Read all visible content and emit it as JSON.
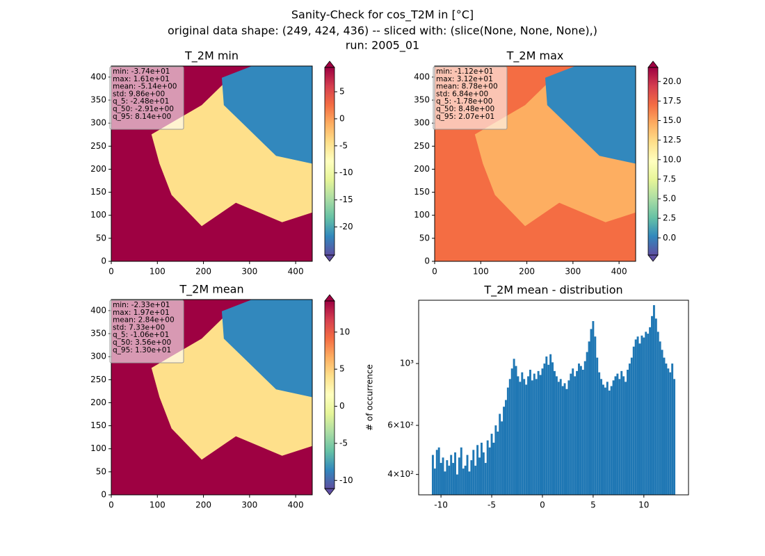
{
  "title": [
    "Sanity-Check for cos_T2M in [°C]",
    "original data shape: (249, 424, 436) -- sliced with: (slice(None, None, None),)",
    "run: 2005_01"
  ],
  "cmap_colors": [
    "#5e4fa2",
    "#3288bd",
    "#66c2a5",
    "#abdda4",
    "#e6f598",
    "#ffffbf",
    "#fee08b",
    "#fdae61",
    "#f46d43",
    "#d53e4f",
    "#9e0142"
  ],
  "chart_data": [
    {
      "type": "heatmap",
      "title": "T_2M min",
      "xlim": [
        0,
        436
      ],
      "ylim": [
        0,
        424
      ],
      "xticks": [
        0,
        100,
        200,
        300,
        400
      ],
      "yticks": [
        0,
        50,
        100,
        150,
        200,
        250,
        300,
        350,
        400
      ],
      "stats": [
        "min: -3.74e+01",
        "max: 1.61e+01",
        "mean: -5.14e+00",
        "std: 9.86e+00",
        "q_5: -2.48e+01",
        "q_50: -2.91e+00",
        "q_95: 8.14e+00"
      ],
      "clim": [
        -25.2,
        9.5
      ],
      "cticks": [
        5,
        0,
        -5,
        -10,
        -15,
        -20
      ],
      "extend": "both"
    },
    {
      "type": "heatmap",
      "title": "T_2M max",
      "xlim": [
        0,
        436
      ],
      "ylim": [
        0,
        424
      ],
      "xticks": [
        0,
        100,
        200,
        300,
        400
      ],
      "yticks": [
        0,
        50,
        100,
        150,
        200,
        250,
        300,
        350,
        400
      ],
      "stats": [
        "min: -1.12e+01",
        "max: 3.12e+01",
        "mean: 8.78e+00",
        "std: 6.84e+00",
        "q_5: -1.78e+00",
        "q_50: 8.48e+00",
        "q_95: 2.07e+01"
      ],
      "clim": [
        -2.2,
        21.8
      ],
      "cticks": [
        {
          "value": 20,
          "label": "20.0"
        },
        17.5,
        {
          "value": 15,
          "label": "15.0"
        },
        12.5,
        {
          "value": 10,
          "label": "10.0"
        },
        7.5,
        {
          "value": 5,
          "label": "5.0"
        },
        2.5,
        {
          "value": 0,
          "label": "0.0"
        }
      ],
      "extend": "both"
    },
    {
      "type": "heatmap",
      "title": "T_2M mean",
      "xlim": [
        0,
        436
      ],
      "ylim": [
        0,
        424
      ],
      "xticks": [
        0,
        100,
        200,
        300,
        400
      ],
      "yticks": [
        0,
        50,
        100,
        150,
        200,
        250,
        300,
        350,
        400
      ],
      "stats": [
        "min: -2.33e+01",
        "max: 1.97e+01",
        "mean: 2.84e+00",
        "std: 7.33e+00",
        "q_5: -1.06e+01",
        "q_50: 3.56e+00",
        "q_95: 1.30e+01"
      ],
      "clim": [
        -11.1,
        14.2
      ],
      "cticks": [
        10,
        5,
        0,
        -5,
        -10
      ],
      "extend": "both"
    },
    {
      "type": "histogram",
      "title": "T_2M mean - distribution",
      "y_label": "# of occurrence",
      "color": "#1f77b4",
      "xlim": [
        -12.2,
        14.4
      ],
      "xticks": [
        -10,
        -5,
        0,
        5,
        10
      ],
      "ylim": [
        338,
        1687
      ],
      "yscale": "log",
      "yticks": [
        {
          "value": 400,
          "label": "4×10²"
        },
        {
          "value": 600,
          "label": "6×10²"
        },
        {
          "value": 1000,
          "label": "10³"
        }
      ],
      "bins": [
        -10.9,
        -10.7,
        -10.5,
        -10.3,
        -10.1,
        -9.9,
        -9.7,
        -9.5,
        -9.3,
        -9.1,
        -8.9,
        -8.7,
        -8.5,
        -8.3,
        -8.1,
        -7.9,
        -7.7,
        -7.5,
        -7.3,
        -7.1,
        -6.9,
        -6.7,
        -6.5,
        -6.3,
        -6.1,
        -5.9,
        -5.7,
        -5.5,
        -5.3,
        -5.1,
        -4.9,
        -4.7,
        -4.5,
        -4.3,
        -4.1,
        -3.9,
        -3.7,
        -3.5,
        -3.3,
        -3.1,
        -2.9,
        -2.7,
        -2.5,
        -2.3,
        -2.1,
        -1.9,
        -1.7,
        -1.5,
        -1.3,
        -1.1,
        -0.9,
        -0.7,
        -0.5,
        -0.3,
        -0.1,
        0.1,
        0.3,
        0.5,
        0.7,
        0.9,
        1.1,
        1.3,
        1.5,
        1.7,
        1.9,
        2.1,
        2.3,
        2.5,
        2.7,
        2.9,
        3.1,
        3.3,
        3.5,
        3.7,
        3.9,
        4.1,
        4.3,
        4.5,
        4.7,
        4.9,
        5.1,
        5.3,
        5.5,
        5.7,
        5.9,
        6.1,
        6.3,
        6.5,
        6.7,
        6.9,
        7.1,
        7.3,
        7.5,
        7.7,
        7.9,
        8.1,
        8.3,
        8.5,
        8.7,
        8.9,
        9.1,
        9.3,
        9.5,
        9.7,
        9.9,
        10.1,
        10.3,
        10.5,
        10.7,
        10.9,
        11.1,
        11.3,
        11.5,
        11.7,
        11.9,
        12.1,
        12.3,
        12.5,
        12.7,
        12.9,
        13.1
      ],
      "values": [
        470,
        420,
        490,
        500,
        440,
        460,
        410,
        450,
        430,
        470,
        440,
        480,
        400,
        460,
        500,
        420,
        430,
        470,
        410,
        450,
        490,
        430,
        510,
        460,
        520,
        480,
        440,
        530,
        500,
        560,
        520,
        600,
        570,
        660,
        620,
        700,
        740,
        820,
        880,
        960,
        1040,
        980,
        900,
        860,
        930,
        880,
        840,
        900,
        950,
        870,
        920,
        880,
        940,
        910,
        960,
        1000,
        1060,
        990,
        1080,
        1010,
        940,
        900,
        860,
        880,
        830,
        850,
        810,
        870,
        920,
        960,
        900,
        940,
        1000,
        980,
        950,
        1020,
        1100,
        1200,
        1330,
        1420,
        1250,
        1050,
        930,
        880,
        840,
        820,
        860,
        800,
        830,
        870,
        900,
        920,
        880,
        940,
        900,
        860,
        950,
        1000,
        1050,
        1150,
        1220,
        1250,
        1180,
        1260,
        1240,
        1300,
        1280,
        1350,
        1480,
        1620,
        1450,
        1300,
        1200,
        1120,
        1050,
        1000,
        960,
        930,
        1000,
        880
      ]
    }
  ]
}
